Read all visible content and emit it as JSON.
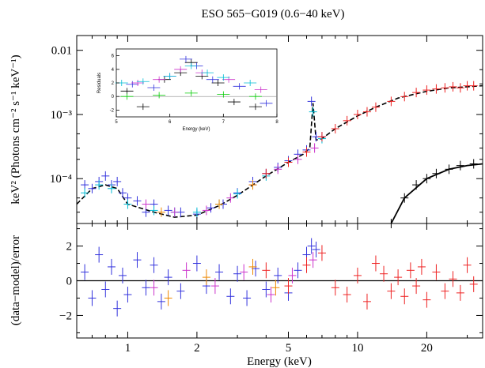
{
  "chart_data": [
    {
      "type": "scatter",
      "panel": "spectrum",
      "title": "ESO 565−G019 (0.6−40 keV)",
      "xlabel": "Energy (keV)",
      "ylabel": "keV² (Photons cm⁻² s⁻¹ keV⁻¹)",
      "x_scale": "log",
      "y_scale": "log",
      "xlim": [
        0.6,
        35
      ],
      "ylim": [
        2e-05,
        0.017
      ],
      "x_ticks": [
        1,
        2,
        5,
        10,
        20
      ],
      "x_tick_labels": [
        "1",
        "2",
        "5",
        "10",
        "20"
      ],
      "y_ticks": [
        0.0001,
        0.001,
        0.01
      ],
      "y_tick_labels": [
        "10⁻⁴",
        "10⁻³",
        "0.01"
      ],
      "series": [
        {
          "color": "#3333dd",
          "points": [
            [
              0.65,
              8e-05
            ],
            [
              0.7,
              7e-05
            ],
            [
              0.75,
              9e-05
            ],
            [
              0.8,
              0.00011
            ],
            [
              0.85,
              8e-05
            ],
            [
              0.9,
              9e-05
            ],
            [
              0.95,
              6e-05
            ],
            [
              1.0,
              5e-05
            ],
            [
              1.1,
              4.5e-05
            ],
            [
              1.2,
              3e-05
            ],
            [
              1.3,
              4e-05
            ],
            [
              1.5,
              3.2e-05
            ],
            [
              1.7,
              3e-05
            ],
            [
              2.0,
              2.8e-05
            ],
            [
              2.3,
              3.5e-05
            ],
            [
              2.6,
              4e-05
            ],
            [
              3.0,
              6e-05
            ],
            [
              3.5,
              9e-05
            ],
            [
              4.0,
              0.00012
            ],
            [
              4.5,
              0.00015
            ],
            [
              5.0,
              0.00019
            ],
            [
              5.5,
              0.00024
            ],
            [
              6.0,
              0.00028
            ],
            [
              6.3,
              0.0016
            ],
            [
              6.6,
              0.00045
            ],
            [
              7.0,
              0.00045
            ]
          ]
        },
        {
          "color": "#00bcd4",
          "points": [
            [
              0.65,
              6e-05
            ],
            [
              0.75,
              8e-05
            ],
            [
              0.85,
              7e-05
            ],
            [
              1.0,
              4e-05
            ],
            [
              1.3,
              3.2e-05
            ],
            [
              1.6,
              3e-05
            ],
            [
              2.0,
              3e-05
            ],
            [
              2.5,
              4e-05
            ],
            [
              3.0,
              5.8e-05
            ],
            [
              4.0,
              0.00011
            ],
            [
              5.0,
              0.00018
            ],
            [
              6.0,
              0.00026
            ],
            [
              6.4,
              0.0011
            ],
            [
              7.0,
              0.00042
            ]
          ]
        },
        {
          "color": "#cc33cc",
          "points": [
            [
              1.2,
              4e-05
            ],
            [
              1.6,
              3e-05
            ],
            [
              2.2,
              3.2e-05
            ],
            [
              2.8,
              5e-05
            ],
            [
              3.5,
              8e-05
            ],
            [
              4.5,
              0.00014
            ],
            [
              5.5,
              0.0002
            ],
            [
              6.5,
              0.0003
            ]
          ]
        },
        {
          "color": "#ee8800",
          "points": [
            [
              1.4,
              3e-05
            ],
            [
              2.5,
              4e-05
            ],
            [
              3.5,
              8e-05
            ]
          ]
        },
        {
          "color": "#ee2222",
          "points": [
            [
              4.0,
              0.00012
            ],
            [
              5.0,
              0.00018
            ],
            [
              6.0,
              0.00026
            ],
            [
              7.0,
              0.00045
            ],
            [
              8.0,
              0.0006
            ],
            [
              9.0,
              0.0008
            ],
            [
              10.0,
              0.001
            ],
            [
              11.0,
              0.0011
            ],
            [
              12.0,
              0.0013
            ],
            [
              14.0,
              0.0016
            ],
            [
              16.0,
              0.0019
            ],
            [
              18.0,
              0.0022
            ],
            [
              20.0,
              0.0024
            ],
            [
              22.0,
              0.0025
            ],
            [
              24.0,
              0.0026
            ],
            [
              26.0,
              0.0027
            ],
            [
              28.0,
              0.0026
            ],
            [
              30.0,
              0.0028
            ],
            [
              32.0,
              0.0028
            ]
          ]
        },
        {
          "color": "#000000",
          "points": [
            [
              14.0,
              2e-05
            ],
            [
              16.0,
              5e-05
            ],
            [
              18.0,
              8e-05
            ],
            [
              20.0,
              0.0001
            ],
            [
              22.0,
              0.00012
            ],
            [
              25.0,
              0.00014
            ],
            [
              28.0,
              0.00016
            ],
            [
              32.0,
              0.00017
            ]
          ]
        }
      ],
      "model": {
        "total": [
          [
            0.6,
            4e-05
          ],
          [
            0.7,
            7e-05
          ],
          [
            0.8,
            8e-05
          ],
          [
            0.9,
            7e-05
          ],
          [
            1.0,
            4e-05
          ],
          [
            1.3,
            3e-05
          ],
          [
            1.6,
            2.5e-05
          ],
          [
            2.0,
            2.7e-05
          ],
          [
            2.5,
            3.8e-05
          ],
          [
            3.0,
            5.5e-05
          ],
          [
            4.0,
            0.00011
          ],
          [
            5.0,
            0.00018
          ],
          [
            5.8,
            0.00024
          ],
          [
            6.2,
            0.0003
          ],
          [
            6.4,
            0.0015
          ],
          [
            6.6,
            0.0004
          ],
          [
            7.0,
            0.00042
          ],
          [
            8.0,
            0.0006
          ],
          [
            10.0,
            0.00095
          ],
          [
            12.0,
            0.0013
          ],
          [
            15.0,
            0.0018
          ],
          [
            20.0,
            0.0023
          ],
          [
            25.0,
            0.0026
          ],
          [
            30.0,
            0.0027
          ],
          [
            35.0,
            0.0028
          ]
        ],
        "reflection": [
          [
            14.0,
            2e-05
          ],
          [
            16.0,
            5e-05
          ],
          [
            20.0,
            0.0001
          ],
          [
            25.0,
            0.00014
          ],
          [
            30.0,
            0.00016
          ],
          [
            35.0,
            0.00017
          ]
        ]
      }
    },
    {
      "type": "scatter",
      "panel": "residuals",
      "xlabel": "Energy (keV)",
      "ylabel": "(data−model)/error",
      "x_scale": "log",
      "xlim": [
        0.6,
        35
      ],
      "ylim": [
        -3.3,
        3.3
      ],
      "y_ticks": [
        -2,
        0,
        2
      ],
      "y_tick_labels": [
        "−2",
        "0",
        "2"
      ],
      "series": [
        {
          "color": "#3333dd",
          "points": [
            [
              0.65,
              0.5
            ],
            [
              0.7,
              -1.0
            ],
            [
              0.75,
              1.5
            ],
            [
              0.8,
              -0.5
            ],
            [
              0.85,
              0.8
            ],
            [
              0.9,
              -1.6
            ],
            [
              0.95,
              0.3
            ],
            [
              1.0,
              -0.8
            ],
            [
              1.1,
              1.2
            ],
            [
              1.2,
              -0.4
            ],
            [
              1.3,
              0.9
            ],
            [
              1.4,
              -1.2
            ],
            [
              1.5,
              0.2
            ],
            [
              1.7,
              -0.6
            ],
            [
              2.0,
              1.0
            ],
            [
              2.2,
              -0.3
            ],
            [
              2.5,
              0.5
            ],
            [
              2.8,
              -0.9
            ],
            [
              3.0,
              0.4
            ],
            [
              3.3,
              -1.0
            ],
            [
              3.6,
              0.7
            ],
            [
              4.0,
              -0.5
            ],
            [
              4.5,
              0.3
            ],
            [
              5.0,
              -0.7
            ],
            [
              5.5,
              0.6
            ],
            [
              6.0,
              1.5
            ],
            [
              6.3,
              2.0
            ],
            [
              6.6,
              1.8
            ]
          ]
        },
        {
          "color": "#cc33cc",
          "points": [
            [
              1.3,
              -0.4
            ],
            [
              1.8,
              0.6
            ],
            [
              2.4,
              -0.3
            ],
            [
              3.2,
              0.5
            ],
            [
              4.2,
              -0.8
            ],
            [
              5.2,
              0.3
            ],
            [
              6.4,
              1.2
            ]
          ]
        },
        {
          "color": "#ee8800",
          "points": [
            [
              1.5,
              -1.0
            ],
            [
              2.2,
              0.2
            ],
            [
              3.5,
              0.8
            ],
            [
              4.4,
              -0.4
            ]
          ]
        },
        {
          "color": "#ee2222",
          "points": [
            [
              4.0,
              0.6
            ],
            [
              5.0,
              -0.3
            ],
            [
              6.0,
              0.9
            ],
            [
              7.0,
              1.6
            ],
            [
              8.0,
              -0.4
            ],
            [
              9.0,
              -0.8
            ],
            [
              10.0,
              0.3
            ],
            [
              11.0,
              -1.2
            ],
            [
              12.0,
              1.0
            ],
            [
              13.0,
              0.4
            ],
            [
              14.0,
              -0.6
            ],
            [
              15.0,
              0.2
            ],
            [
              16.0,
              -0.9
            ],
            [
              17.0,
              0.6
            ],
            [
              18.0,
              -0.3
            ],
            [
              19.0,
              0.8
            ],
            [
              20.0,
              -1.1
            ],
            [
              22.0,
              0.5
            ],
            [
              24.0,
              -0.6
            ],
            [
              26.0,
              0.1
            ],
            [
              28.0,
              -0.7
            ],
            [
              30.0,
              0.9
            ],
            [
              32.0,
              -0.2
            ]
          ]
        }
      ]
    },
    {
      "type": "scatter",
      "panel": "inset",
      "xlabel": "Energy (keV)",
      "ylabel": "Residuals",
      "xlim": [
        5,
        8
      ],
      "ylim": [
        -3,
        7
      ],
      "x_ticks": [
        5,
        6,
        7,
        8
      ],
      "x_tick_labels": [
        "5",
        "6",
        "7",
        "8"
      ],
      "y_ticks": [
        -2,
        0,
        2,
        4,
        6
      ],
      "y_tick_labels": [
        "-2",
        "0",
        "2",
        "4",
        "6"
      ],
      "series": [
        {
          "color": "#000000",
          "points": [
            [
              5.2,
              0.8
            ],
            [
              5.5,
              -1.5
            ],
            [
              5.9,
              2.5
            ],
            [
              6.2,
              3.5
            ],
            [
              6.4,
              5.0
            ],
            [
              6.6,
              3.0
            ],
            [
              6.9,
              2.0
            ],
            [
              7.2,
              -0.8
            ],
            [
              7.6,
              -1.5
            ]
          ]
        },
        {
          "color": "#3333dd",
          "points": [
            [
              5.3,
              1.8
            ],
            [
              5.7,
              1.3
            ],
            [
              6.0,
              3.0
            ],
            [
              6.3,
              5.5
            ],
            [
              6.5,
              4.5
            ],
            [
              6.8,
              2.5
            ],
            [
              7.3,
              1.5
            ],
            [
              7.8,
              -1.0
            ]
          ]
        },
        {
          "color": "#cc33cc",
          "points": [
            [
              5.4,
              2.0
            ],
            [
              5.8,
              2.5
            ],
            [
              6.2,
              4.0
            ],
            [
              6.6,
              3.5
            ],
            [
              7.1,
              2.5
            ],
            [
              7.7,
              1.0
            ]
          ]
        },
        {
          "color": "#00bcd4",
          "points": [
            [
              5.1,
              2.0
            ],
            [
              5.5,
              2.2
            ],
            [
              6.0,
              3.0
            ],
            [
              6.4,
              4.5
            ],
            [
              6.7,
              3.5
            ],
            [
              7.0,
              2.8
            ],
            [
              7.5,
              2.0
            ]
          ]
        },
        {
          "color": "#00cc00",
          "points": [
            [
              5.2,
              0.0
            ],
            [
              5.8,
              0.2
            ],
            [
              6.4,
              0.5
            ],
            [
              7.0,
              0.3
            ],
            [
              7.6,
              0.0
            ]
          ]
        }
      ]
    }
  ]
}
